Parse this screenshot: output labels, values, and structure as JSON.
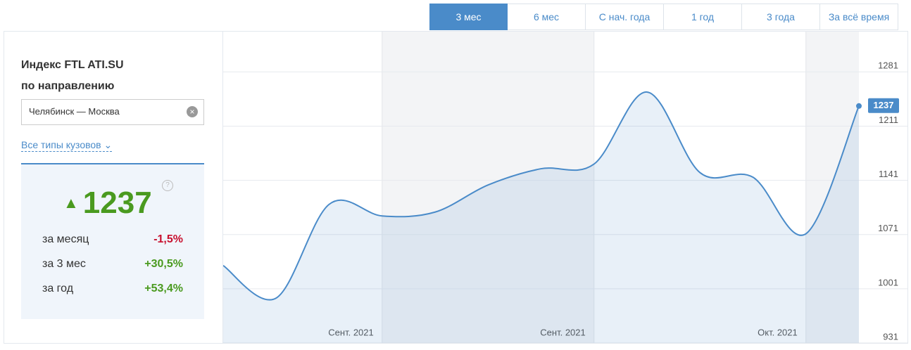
{
  "tabs": [
    "3 мес",
    "6 мес",
    "С нач. года",
    "1 год",
    "3 года",
    "За всё время"
  ],
  "panel": {
    "title_line1": "Индекс FTL ATI.SU",
    "title_line2": "по направлению",
    "route": "Челябинск — Москва",
    "body_types": "Все типы кузовов",
    "help": "?",
    "stats": [
      {
        "label": "за месяц",
        "value": "-1,5%"
      },
      {
        "label": "за 3 мес",
        "value": "+30,5%"
      },
      {
        "label": "за год",
        "value": "+53,4%"
      }
    ]
  },
  "chart_data": {
    "type": "line",
    "color": "#4a8bc9",
    "categories": [
      null,
      null,
      null,
      "Сент. 2021",
      null,
      null,
      null,
      "Сент. 2021",
      null,
      null,
      null,
      "Окт. 2021",
      null
    ],
    "values": [
      1031,
      989,
      1110,
      1095,
      1100,
      1135,
      1156,
      1162,
      1255,
      1151,
      1145,
      1072,
      1237
    ],
    "ylim": [
      931,
      1333
    ],
    "yticks": [
      931,
      1001,
      1071,
      1141,
      1211,
      1281
    ],
    "grid": true
  }
}
